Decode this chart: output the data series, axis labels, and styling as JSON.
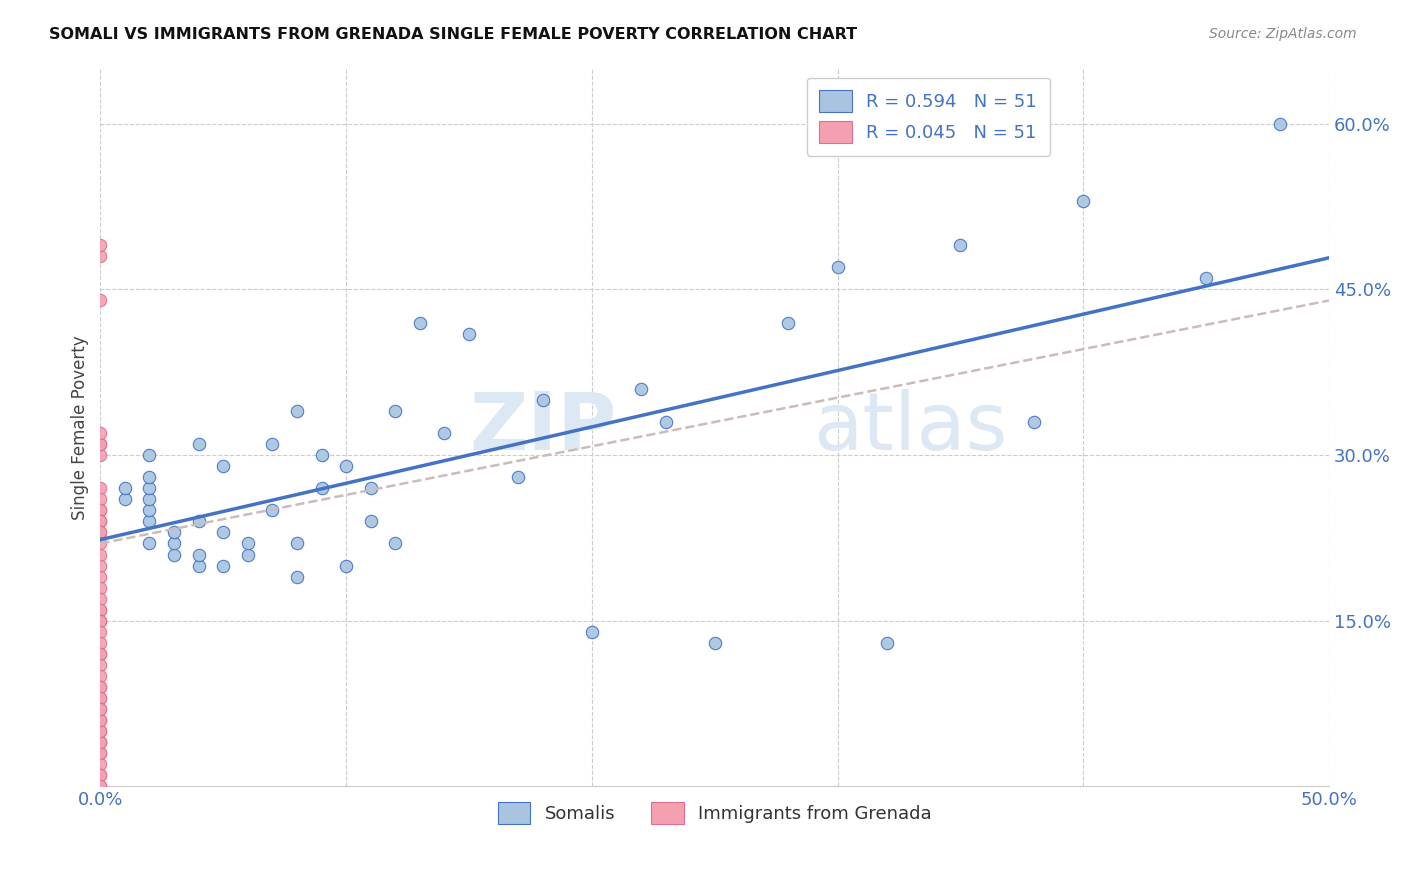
{
  "title": "SOMALI VS IMMIGRANTS FROM GRENADA SINGLE FEMALE POVERTY CORRELATION CHART",
  "source": "Source: ZipAtlas.com",
  "ylabel": "Single Female Poverty",
  "xlim": [
    0.0,
    0.5
  ],
  "ylim": [
    0.0,
    0.65
  ],
  "somali_color": "#a8c4e0",
  "grenada_color": "#f4a0b0",
  "somali_line_color": "#4472c4",
  "grenada_line_color": "#ccbbbb",
  "R_somali": 0.594,
  "N_somali": 51,
  "R_grenada": 0.045,
  "N_grenada": 51,
  "watermark_zip": "ZIP",
  "watermark_atlas": "atlas",
  "legend_somali": "Somalis",
  "legend_grenada": "Immigrants from Grenada",
  "somali_x": [
    0.01,
    0.01,
    0.02,
    0.02,
    0.02,
    0.02,
    0.02,
    0.02,
    0.02,
    0.03,
    0.03,
    0.03,
    0.04,
    0.04,
    0.04,
    0.04,
    0.05,
    0.05,
    0.05,
    0.06,
    0.06,
    0.07,
    0.07,
    0.08,
    0.08,
    0.08,
    0.09,
    0.09,
    0.1,
    0.1,
    0.11,
    0.11,
    0.12,
    0.12,
    0.13,
    0.14,
    0.15,
    0.17,
    0.18,
    0.2,
    0.22,
    0.23,
    0.25,
    0.28,
    0.3,
    0.32,
    0.35,
    0.38,
    0.4,
    0.45,
    0.48
  ],
  "somali_y": [
    0.26,
    0.27,
    0.22,
    0.24,
    0.25,
    0.26,
    0.27,
    0.28,
    0.3,
    0.21,
    0.22,
    0.23,
    0.2,
    0.21,
    0.24,
    0.31,
    0.2,
    0.23,
    0.29,
    0.21,
    0.22,
    0.25,
    0.31,
    0.19,
    0.22,
    0.34,
    0.27,
    0.3,
    0.2,
    0.29,
    0.24,
    0.27,
    0.22,
    0.34,
    0.42,
    0.32,
    0.41,
    0.28,
    0.35,
    0.14,
    0.36,
    0.33,
    0.13,
    0.42,
    0.47,
    0.13,
    0.49,
    0.33,
    0.53,
    0.46,
    0.6
  ],
  "grenada_y": [
    0.48,
    0.49,
    0.44,
    0.25,
    0.3,
    0.31,
    0.31,
    0.32,
    0.27,
    0.26,
    0.25,
    0.24,
    0.24,
    0.23,
    0.23,
    0.22,
    0.21,
    0.2,
    0.19,
    0.18,
    0.17,
    0.16,
    0.16,
    0.15,
    0.15,
    0.14,
    0.13,
    0.12,
    0.12,
    0.11,
    0.1,
    0.09,
    0.09,
    0.08,
    0.08,
    0.07,
    0.06,
    0.05,
    0.04,
    0.04,
    0.03,
    0.02,
    0.01,
    0.01,
    0.0,
    0.0,
    0.03,
    0.04,
    0.05,
    0.06,
    0.07
  ],
  "grenada_scatter_x": [
    0.0,
    0.0,
    0.0,
    0.0,
    0.0,
    0.0,
    0.0,
    0.0,
    0.0,
    0.0,
    0.0,
    0.0,
    0.0,
    0.0,
    0.0,
    0.0,
    0.0,
    0.0,
    0.0,
    0.0,
    0.0,
    0.0,
    0.0,
    0.0,
    0.0,
    0.0,
    0.0,
    0.0,
    0.0,
    0.0,
    0.0,
    0.0,
    0.0,
    0.0,
    0.0,
    0.0,
    0.0,
    0.0,
    0.0,
    0.0,
    0.0,
    0.0,
    0.0,
    0.0,
    0.0,
    0.0,
    0.0,
    0.0,
    0.0,
    0.0,
    0.0
  ],
  "grenada_line_x0": 0.0,
  "grenada_line_x1": 0.5,
  "grenada_line_y0": 0.22,
  "grenada_line_y1": 0.44
}
